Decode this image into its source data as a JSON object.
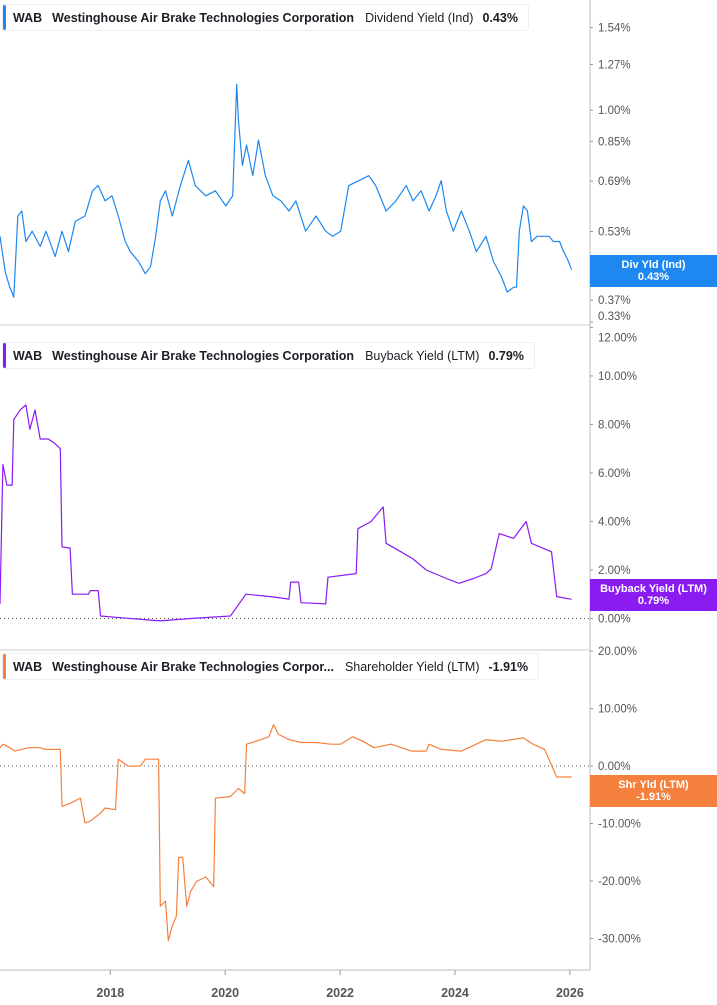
{
  "chart_data": [
    {
      "type": "line",
      "ticker": "WAB",
      "company": "Westinghouse Air Brake Technologies Corporation",
      "metric": "Dividend Yield (Ind)",
      "current_value": "0.43%",
      "badge_label": "Div Yld (Ind)",
      "color": "#1e88f0",
      "y_scale": "log",
      "ylim": [
        0.325,
        1.78
      ],
      "y_ticks": [
        "1.54%",
        "1.27%",
        "1.00%",
        "0.85%",
        "0.69%",
        "0.53%",
        "0.37%",
        "0.33%"
      ],
      "y_tick_values": [
        1.54,
        1.27,
        1.0,
        0.85,
        0.69,
        0.53,
        0.37,
        0.33
      ],
      "x": [
        2016.08,
        2016.17,
        2016.25,
        2016.32,
        2016.39,
        2016.46,
        2016.53,
        2016.64,
        2016.78,
        2016.88,
        2017.04,
        2017.16,
        2017.27,
        2017.39,
        2017.56,
        2017.69,
        2017.79,
        2017.91,
        2018.03,
        2018.14,
        2018.26,
        2018.35,
        2018.49,
        2018.61,
        2018.7,
        2018.79,
        2018.87,
        2018.96,
        2019.08,
        2019.22,
        2019.36,
        2019.48,
        2019.66,
        2019.83,
        2020.01,
        2020.13,
        2020.2,
        2020.23,
        2020.3,
        2020.37,
        2020.48,
        2020.58,
        2020.7,
        2020.83,
        2020.97,
        2021.11,
        2021.23,
        2021.4,
        2021.58,
        2021.75,
        2021.87,
        2022.01,
        2022.15,
        2022.33,
        2022.5,
        2022.62,
        2022.8,
        2022.97,
        2023.15,
        2023.27,
        2023.41,
        2023.55,
        2023.67,
        2023.76,
        2023.85,
        2023.97,
        2024.11,
        2024.25,
        2024.37,
        2024.54,
        2024.67,
        2024.81,
        2024.91,
        2025.02,
        2025.07,
        2025.12,
        2025.19,
        2025.26,
        2025.33,
        2025.43,
        2025.54,
        2025.64,
        2025.71,
        2025.82,
        2025.89,
        2025.96,
        2026.03
      ],
      "values": [
        0.517,
        0.429,
        0.396,
        0.376,
        0.575,
        0.59,
        0.503,
        0.531,
        0.49,
        0.531,
        0.465,
        0.531,
        0.477,
        0.559,
        0.575,
        0.656,
        0.674,
        0.622,
        0.639,
        0.575,
        0.503,
        0.477,
        0.453,
        0.425,
        0.441,
        0.517,
        0.622,
        0.656,
        0.575,
        0.674,
        0.769,
        0.674,
        0.639,
        0.656,
        0.606,
        0.639,
        1.145,
        0.951,
        0.749,
        0.833,
        0.71,
        0.855,
        0.71,
        0.639,
        0.622,
        0.59,
        0.622,
        0.531,
        0.575,
        0.531,
        0.517,
        0.531,
        0.674,
        0.692,
        0.71,
        0.674,
        0.59,
        0.622,
        0.674,
        0.622,
        0.656,
        0.59,
        0.639,
        0.692,
        0.59,
        0.531,
        0.59,
        0.531,
        0.477,
        0.517,
        0.453,
        0.418,
        0.386,
        0.396,
        0.396,
        0.531,
        0.606,
        0.59,
        0.503,
        0.517,
        0.517,
        0.517,
        0.503,
        0.503,
        0.477,
        0.458,
        0.434
      ]
    },
    {
      "type": "line",
      "ticker": "WAB",
      "company": "Westinghouse Air Brake Technologies Corporation",
      "metric": "Buyback Yield (LTM)",
      "current_value": "0.79%",
      "badge_label": "Buyback Yield (LTM)",
      "color": "#8a1cf2",
      "ylim": [
        -1.3,
        12.1
      ],
      "y_ticks": [
        "12.00%",
        "10.00%",
        "8.00%",
        "6.00%",
        "4.00%",
        "2.00%",
        "0.00%"
      ],
      "y_tick_values": [
        12,
        10,
        8,
        6,
        4,
        2,
        0
      ],
      "zero_line": true,
      "x": [
        2016.08,
        2016.13,
        2016.2,
        2016.29,
        2016.32,
        2016.43,
        2016.53,
        2016.6,
        2016.69,
        2016.78,
        2016.92,
        2017.04,
        2017.13,
        2017.16,
        2017.3,
        2017.34,
        2017.62,
        2017.65,
        2017.79,
        2017.83,
        2018.35,
        2018.87,
        2019.4,
        2020.09,
        2020.36,
        2020.79,
        2021.11,
        2021.14,
        2021.28,
        2021.32,
        2021.75,
        2021.79,
        2022.28,
        2022.31,
        2022.54,
        2022.75,
        2022.8,
        2023.06,
        2023.27,
        2023.5,
        2023.85,
        2024.07,
        2024.32,
        2024.54,
        2024.63,
        2024.77,
        2025.02,
        2025.24,
        2025.33,
        2025.68,
        2025.77,
        2026.03
      ],
      "values": [
        0.6,
        6.35,
        5.5,
        5.5,
        8.2,
        8.6,
        8.8,
        7.8,
        8.6,
        7.4,
        7.4,
        7.2,
        7.0,
        2.95,
        2.9,
        1.0,
        1.0,
        1.15,
        1.15,
        0.1,
        0.0,
        -0.1,
        0.0,
        0.1,
        1.0,
        0.9,
        0.8,
        1.5,
        1.5,
        0.65,
        0.6,
        1.7,
        1.85,
        3.7,
        4.0,
        4.6,
        3.1,
        2.75,
        2.45,
        2.0,
        1.65,
        1.45,
        1.65,
        1.85,
        2.05,
        3.5,
        3.3,
        4.0,
        3.1,
        2.75,
        0.9,
        0.79
      ]
    },
    {
      "type": "line",
      "ticker": "WAB",
      "company": "Westinghouse Air Brake Technologies Corpor...",
      "metric": "Shareholder Yield (LTM)",
      "current_value": "-1.91%",
      "badge_label": "Shr Yld (LTM)",
      "color": "#f5803e",
      "ylim": [
        -35.5,
        20.2
      ],
      "y_ticks": [
        "20.00%",
        "10.00%",
        "0.00%",
        "-10.00%",
        "-20.00%",
        "-30.00%"
      ],
      "y_tick_values": [
        20,
        10,
        0,
        -10,
        -20,
        -30
      ],
      "zero_line": true,
      "x": [
        2016.08,
        2016.13,
        2016.25,
        2016.34,
        2016.57,
        2016.78,
        2016.87,
        2017.13,
        2017.16,
        2017.3,
        2017.48,
        2017.56,
        2017.65,
        2017.83,
        2017.91,
        2018.09,
        2018.14,
        2018.31,
        2018.52,
        2018.61,
        2018.84,
        2018.87,
        2018.96,
        2019.01,
        2019.08,
        2019.15,
        2019.19,
        2019.26,
        2019.33,
        2019.4,
        2019.5,
        2019.66,
        2019.8,
        2019.83,
        2020.09,
        2020.23,
        2020.34,
        2020.37,
        2020.53,
        2020.76,
        2020.84,
        2020.93,
        2021.11,
        2021.32,
        2021.58,
        2021.84,
        2022.01,
        2022.22,
        2022.4,
        2022.59,
        2022.89,
        2023.24,
        2023.5,
        2023.55,
        2023.76,
        2024.11,
        2024.37,
        2024.54,
        2024.81,
        2025.19,
        2025.36,
        2025.56,
        2025.77,
        2026.03
      ],
      "values": [
        3.2,
        3.8,
        3.2,
        2.6,
        3.2,
        3.2,
        2.9,
        2.9,
        -7.0,
        -6.5,
        -5.6,
        -9.9,
        -9.6,
        -8.2,
        -7.3,
        -7.6,
        1.2,
        0.0,
        0.0,
        1.2,
        1.2,
        -24.4,
        -23.5,
        -30.4,
        -27.8,
        -26.1,
        -15.9,
        -15.9,
        -24.4,
        -21.8,
        -20.1,
        -19.3,
        -21.0,
        -5.6,
        -5.3,
        -3.9,
        -4.8,
        3.8,
        4.3,
        5.1,
        7.2,
        5.5,
        4.6,
        4.1,
        4.1,
        3.8,
        3.8,
        5.1,
        4.3,
        3.2,
        3.8,
        2.6,
        2.6,
        3.8,
        2.9,
        2.6,
        3.8,
        4.6,
        4.3,
        4.9,
        3.8,
        2.9,
        -1.9,
        -1.91
      ]
    }
  ],
  "x_axis": {
    "ticks": [
      "2018",
      "2020",
      "2022",
      "2024",
      "2026"
    ],
    "tick_values": [
      2018,
      2020,
      2022,
      2024,
      2026
    ],
    "xlim": [
      2016.08,
      2026.35
    ]
  }
}
